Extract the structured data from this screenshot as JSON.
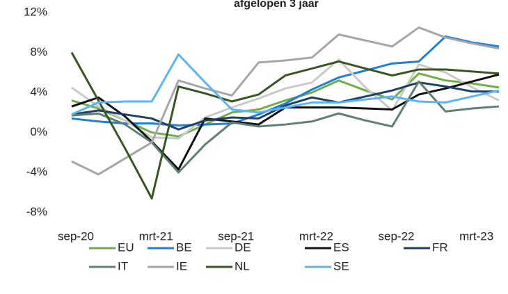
{
  "chart_data": {
    "type": "line",
    "title": "afgelopen 3 jaar",
    "categories": [
      "sep-20",
      null,
      null,
      "mrt-21",
      null,
      null,
      "sep-21",
      null,
      null,
      "mrt-22",
      null,
      null,
      "sep-22",
      null,
      null,
      "mrt-23",
      null
    ],
    "ylim": [
      -9,
      12
    ],
    "yticks": [
      {
        "value": 12,
        "label": "12%"
      },
      {
        "value": 8,
        "label": "8%"
      },
      {
        "value": 4,
        "label": "4%"
      },
      {
        "value": 0,
        "label": "0%"
      },
      {
        "value": -4,
        "label": "-4%"
      },
      {
        "value": -8,
        "label": "-8%"
      }
    ],
    "series": [
      {
        "name": "EU",
        "color": "#70ad47",
        "values": [
          3.2,
          2.4,
          1.2,
          0,
          -0.4,
          0.8,
          2.0,
          2.3,
          3.2,
          4.0,
          5.2,
          4.2,
          3.3,
          5.9,
          5.2,
          4.9,
          4.5
        ]
      },
      {
        "name": "BE",
        "color": "#1f7fd6",
        "values": [
          1.4,
          1.1,
          0.9,
          0.9,
          0.7,
          0.8,
          0.9,
          1.8,
          2.9,
          4.3,
          5.5,
          6.2,
          6.9,
          7.1,
          9.6,
          9.0,
          8.6
        ]
      },
      {
        "name": "DE",
        "color": "#c9c9c9",
        "values": [
          4.5,
          2.6,
          1.2,
          -0.5,
          -0.6,
          1.5,
          2.5,
          3.4,
          4.4,
          5.0,
          7.3,
          4.5,
          2.2,
          6.8,
          6.0,
          4.5,
          3.2
        ]
      },
      {
        "name": "ES",
        "color": "#111111",
        "values": [
          2.6,
          3.5,
          1.6,
          -0.9,
          -3.7,
          1.4,
          1.1,
          0.8,
          2.5,
          2.5,
          2.5,
          2.4,
          2.3,
          3.8,
          4.4,
          5.1,
          5.8
        ]
      },
      {
        "name": "FR",
        "color": "#1f3f66",
        "values": [
          1.8,
          2.2,
          1.8,
          1.4,
          0.3,
          1.2,
          1.5,
          1.4,
          2.7,
          3.5,
          3.0,
          3.6,
          4.2,
          5.0,
          4.6,
          4.1,
          4.1
        ]
      },
      {
        "name": "IT",
        "color": "#5f7f70",
        "values": [
          1.7,
          1.9,
          0.8,
          -1.0,
          -4.0,
          -1.2,
          1.0,
          0.6,
          0.8,
          1.1,
          1.9,
          1.2,
          0.6,
          5.1,
          2.1,
          2.4,
          2.6
        ]
      },
      {
        "name": "IE",
        "color": "#a6a6a6",
        "values": [
          -2.9,
          -4.2,
          -2.6,
          -1.0,
          5.2,
          4.4,
          3.7,
          7.0,
          7.2,
          7.5,
          9.8,
          9.2,
          8.6,
          10.5,
          9.5,
          8.9,
          8.4
        ]
      },
      {
        "name": "NL",
        "color": "#375623",
        "values": [
          8,
          3.2,
          -1.6,
          -6.6,
          4.6,
          3.9,
          3.1,
          3.8,
          5.7,
          6.4,
          7.1,
          6.4,
          5.7,
          6.3,
          6.3,
          6.1,
          5.9
        ]
      },
      {
        "name": "SE",
        "color": "#5bb5f0",
        "values": [
          1.8,
          3.0,
          3.1,
          3.1,
          7.8,
          5.0,
          2.3,
          2.0,
          2.5,
          3.0,
          3.0,
          3.3,
          3.6,
          3.1,
          3.0,
          3.6,
          4.2
        ]
      }
    ]
  }
}
